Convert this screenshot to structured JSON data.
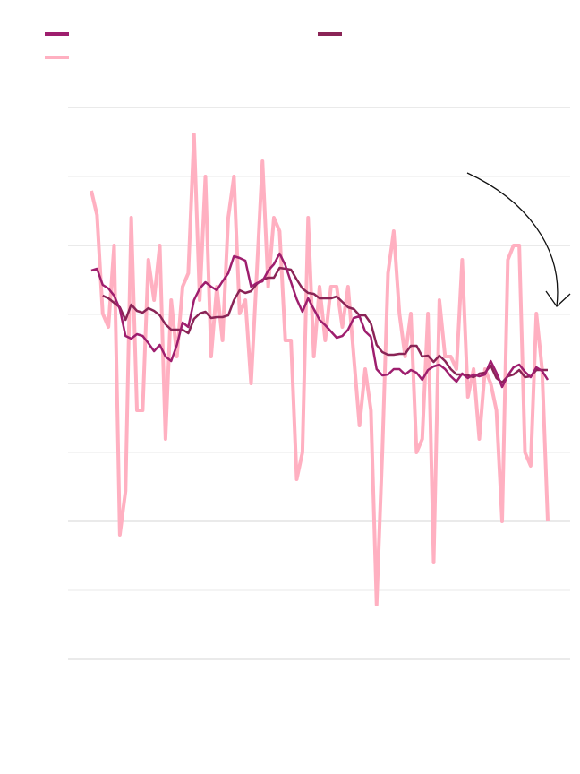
{
  "chart_data": {
    "type": "line",
    "categories": [
      null,
      null,
      null,
      null,
      null,
      null,
      null,
      null,
      null,
      null,
      null,
      null,
      null,
      null,
      null,
      null,
      null,
      null,
      null,
      null,
      null,
      null,
      null,
      null,
      null,
      null,
      null,
      null,
      null,
      null,
      null,
      null,
      null,
      null,
      null,
      null,
      null,
      null,
      null,
      null,
      null,
      null,
      null,
      null,
      null,
      null,
      null,
      null,
      null,
      null,
      null,
      null,
      null,
      null,
      null,
      null,
      null,
      null,
      null,
      null,
      null,
      null,
      null,
      null,
      null,
      null,
      null,
      null,
      null,
      null,
      null,
      null,
      null,
      null,
      null,
      null,
      null,
      null,
      null,
      null,
      null
    ],
    "series": [
      {
        "color": "#9e1e6e",
        "values": [
          434,
          436,
          418,
          414,
          406,
          391,
          361,
          358,
          363,
          361,
          353,
          344,
          351,
          338,
          333,
          351,
          376,
          371,
          401,
          414,
          421,
          416,
          412,
          422,
          431,
          450,
          448,
          445,
          416,
          420,
          422,
          434,
          441,
          453,
          440,
          421,
          402,
          388,
          403,
          391,
          379,
          373,
          366,
          359,
          361,
          368,
          381,
          383,
          366,
          360,
          324,
          317,
          318,
          324,
          324,
          318,
          323,
          320,
          312,
          323,
          327,
          329,
          324,
          316,
          310,
          319,
          314,
          318,
          316,
          318,
          333,
          320,
          304,
          317,
          326,
          329,
          321,
          315,
          326,
          322,
          312
        ]
      },
      {
        "color": "#8a2456",
        "values": [
          null,
          null,
          406,
          403,
          398,
          393,
          379,
          396,
          389,
          387,
          392,
          389,
          384,
          374,
          368,
          368,
          368,
          364,
          380,
          386,
          388,
          381,
          382,
          382,
          384,
          401,
          412,
          409,
          411,
          419,
          424,
          426,
          426,
          437,
          436,
          435,
          424,
          414,
          409,
          408,
          403,
          403,
          403,
          405,
          399,
          393,
          391,
          384,
          384,
          375,
          351,
          343,
          340,
          340,
          341,
          341,
          350,
          350,
          338,
          339,
          332,
          339,
          333,
          324,
          318,
          318,
          317,
          315,
          319,
          320,
          328,
          314,
          309,
          316,
          318,
          323,
          315,
          316,
          323,
          323,
          323
        ]
      },
      {
        "color": "#ffb0c1",
        "values": [
          523,
          496,
          386,
          371,
          462,
          139,
          188,
          493,
          278,
          278,
          446,
          401,
          462,
          246,
          401,
          338,
          416,
          431,
          586,
          401,
          539,
          338,
          416,
          356,
          493,
          539,
          386,
          401,
          308,
          431,
          556,
          416,
          493,
          478,
          356,
          356,
          201,
          231,
          493,
          338,
          416,
          356,
          416,
          416,
          371,
          416,
          338,
          261,
          324,
          278,
          61,
          231,
          431,
          478,
          386,
          338,
          386,
          231,
          246,
          386,
          108,
          401,
          338,
          338,
          324,
          446,
          293,
          324,
          246,
          324,
          308,
          278,
          154,
          446,
          462,
          462,
          231,
          216,
          386,
          324,
          154
        ]
      }
    ],
    "ylim": [
      0,
      616
    ],
    "yticks": [
      0,
      77,
      154,
      231,
      308,
      385,
      462,
      539,
      616
    ],
    "grid": true
  }
}
